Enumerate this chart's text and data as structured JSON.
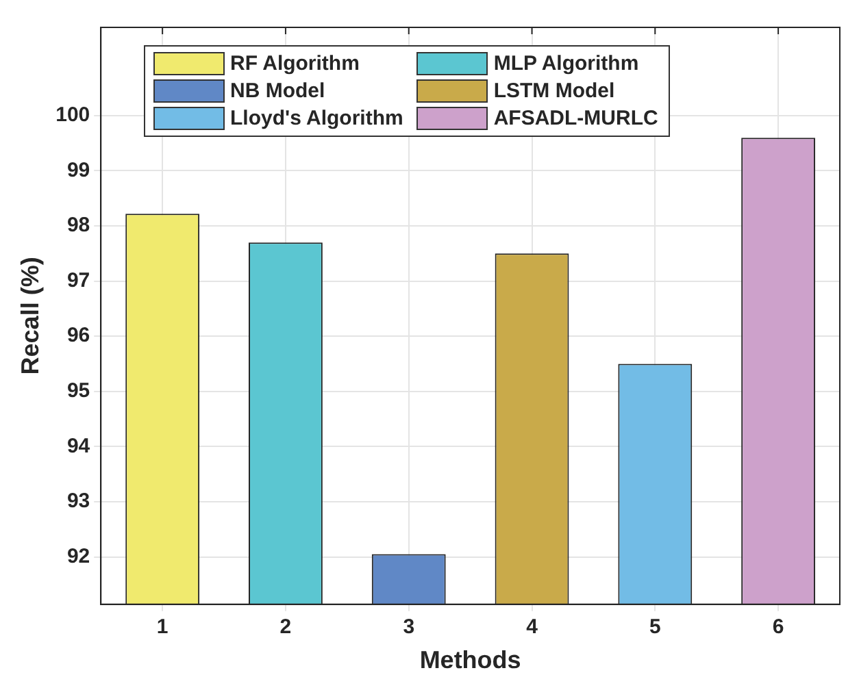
{
  "chart_data": {
    "type": "bar",
    "xlabel": "Methods",
    "ylabel": "Recall (%)",
    "categories": [
      "1",
      "2",
      "3",
      "4",
      "5",
      "6"
    ],
    "series": [
      {
        "name": "RF Algorithm",
        "color": "#f0ea6e",
        "values": [
          98.22,
          null,
          null,
          null,
          null,
          null
        ]
      },
      {
        "name": "MLP Algorithm",
        "color": "#5bc6d1",
        "values": [
          null,
          97.7,
          null,
          null,
          null,
          null
        ]
      },
      {
        "name": "NB Model",
        "color": "#6088c6",
        "values": [
          null,
          null,
          92.05,
          null,
          null,
          null
        ]
      },
      {
        "name": "LSTM Model",
        "color": "#c9aa4a",
        "values": [
          null,
          null,
          null,
          97.5,
          null,
          null
        ]
      },
      {
        "name": "Lloyd's Algorithm",
        "color": "#72bce6",
        "values": [
          null,
          null,
          null,
          null,
          95.5,
          null
        ]
      },
      {
        "name": "AFSADL-MURLC",
        "color": "#cda1cb",
        "values": [
          null,
          null,
          null,
          null,
          null,
          99.6
        ]
      }
    ],
    "ylim": [
      91.14,
      101.6
    ],
    "yticks": [
      92,
      93,
      94,
      95,
      96,
      97,
      98,
      99,
      100
    ],
    "grid": true,
    "legend": "top"
  }
}
